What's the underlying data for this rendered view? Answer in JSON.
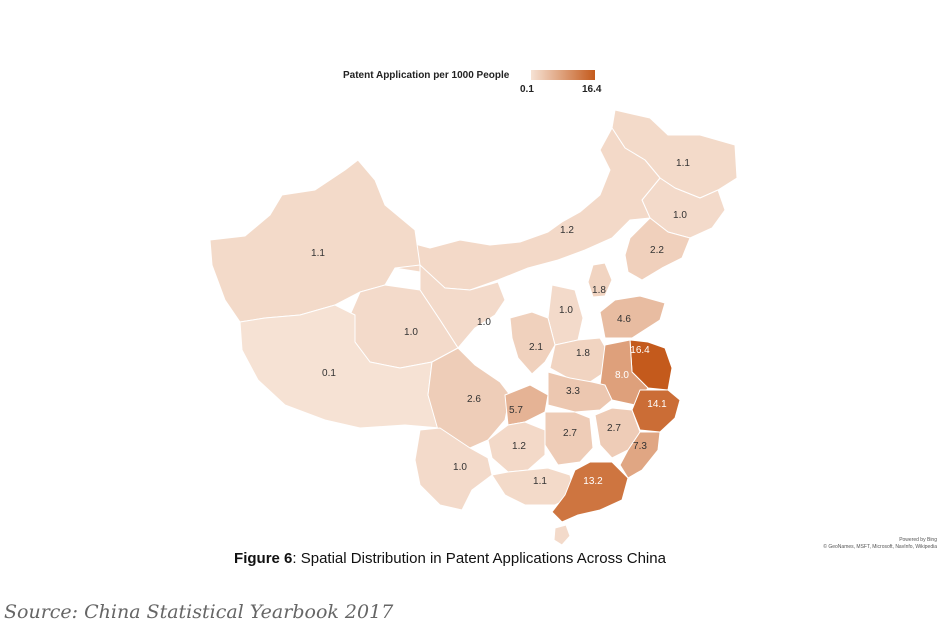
{
  "legend": {
    "title": "Patent Application per 1000 People",
    "min": 0.1,
    "max": 16.4,
    "min_label": "0.1",
    "max_label": "16.4"
  },
  "colors": {
    "low": "#f6e2d4",
    "high": "#c45a1c",
    "outline": "#ffffff"
  },
  "regions": [
    {
      "label": "1.1",
      "value": 1.1
    },
    {
      "label": "1.0",
      "value": 1.0
    },
    {
      "label": "1.2",
      "value": 1.2
    },
    {
      "label": "2.2",
      "value": 2.2
    },
    {
      "label": "1.8",
      "value": 1.8
    },
    {
      "label": "4.6",
      "value": 4.6
    },
    {
      "label": "1.1",
      "value": 1.1
    },
    {
      "label": "1.0",
      "value": 1.0
    },
    {
      "label": "1.0",
      "value": 1.0
    },
    {
      "label": "1.0",
      "value": 1.0
    },
    {
      "label": "0.1",
      "value": 0.1
    },
    {
      "label": "2.1",
      "value": 2.1
    },
    {
      "label": "1.8",
      "value": 1.8
    },
    {
      "label": "16.4",
      "value": 16.4
    },
    {
      "label": "8.0",
      "value": 8.0
    },
    {
      "label": "2.6",
      "value": 2.6
    },
    {
      "label": "5.7",
      "value": 5.7
    },
    {
      "label": "3.3",
      "value": 3.3
    },
    {
      "label": "14.1",
      "value": 14.1
    },
    {
      "label": "2.7",
      "value": 2.7
    },
    {
      "label": "2.7",
      "value": 2.7
    },
    {
      "label": "7.3",
      "value": 7.3
    },
    {
      "label": "1.2",
      "value": 1.2
    },
    {
      "label": "1.0",
      "value": 1.0
    },
    {
      "label": "1.1",
      "value": 1.1
    },
    {
      "label": "13.2",
      "value": 13.2
    }
  ],
  "attribution": {
    "line1": "Powered by Bing",
    "line2": "© GeoNames, MSFT, Microsoft, NavInfo, Wikipedia"
  },
  "caption": {
    "label": "Figure 6",
    "text": ": Spatial Distribution in Patent Applications Across China"
  },
  "source": "Source: China Statistical Yearbook 2017"
}
